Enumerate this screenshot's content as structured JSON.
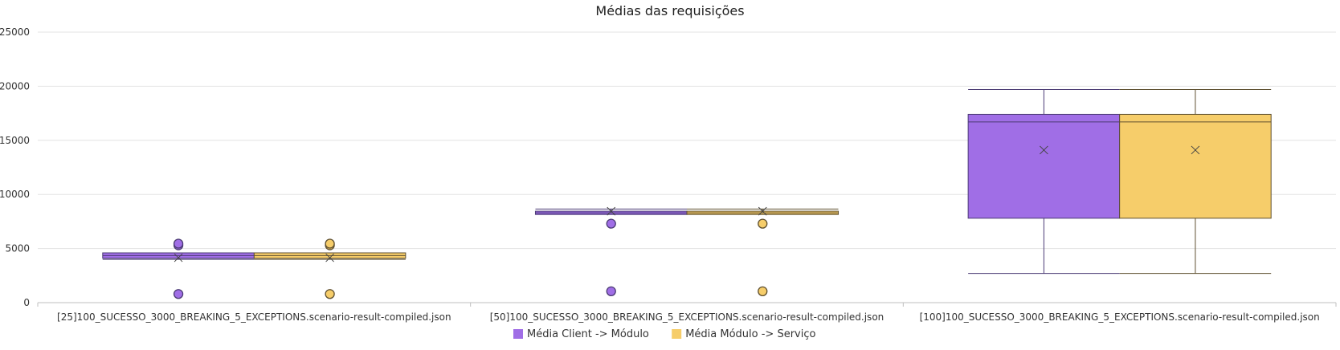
{
  "chart_data": {
    "type": "box",
    "title": "Médias das requisições",
    "y_ticks": [
      0,
      5000,
      10000,
      15000,
      20000,
      25000
    ],
    "ylim": [
      0,
      25000
    ],
    "categories": [
      "[25]100_SUCESSO_3000_BREAKING_5_EXCEPTIONS.scenario-result-compiled.json",
      "[50]100_SUCESSO_3000_BREAKING_5_EXCEPTIONS.scenario-result-compiled.json",
      "[100]100_SUCESSO_3000_BREAKING_5_EXCEPTIONS.scenario-result-compiled.json"
    ],
    "series": [
      {
        "name": "Média Client -> Módulo",
        "color": "#a06ee6",
        "stroke": "#4b3b74",
        "boxes": [
          {
            "whisker_low": 4000,
            "q1": 4100,
            "median": 4350,
            "q3": 4600,
            "whisker_high": 4600,
            "mean": 4150,
            "outliers": [
              800,
              5300,
              5450
            ]
          },
          {
            "whisker_low": 8150,
            "q1": 8150,
            "median": 8300,
            "q3": 8450,
            "whisker_high": 8650,
            "mean": 8450,
            "outliers": [
              1050,
              7300
            ]
          },
          {
            "whisker_low": 2700,
            "q1": 7800,
            "median": 16700,
            "q3": 17400,
            "whisker_high": 19700,
            "mean": 14100,
            "outliers": []
          }
        ]
      },
      {
        "name": "Média Módulo -> Serviço",
        "color": "#f6cd6a",
        "stroke": "#5f5030",
        "boxes": [
          {
            "whisker_low": 4000,
            "q1": 4100,
            "median": 4350,
            "q3": 4600,
            "whisker_high": 4600,
            "mean": 4150,
            "outliers": [
              800,
              5300,
              5450
            ]
          },
          {
            "whisker_low": 8150,
            "q1": 8150,
            "median": 8300,
            "q3": 8450,
            "whisker_high": 8650,
            "mean": 8450,
            "outliers": [
              1050,
              7300
            ]
          },
          {
            "whisker_low": 2700,
            "q1": 7800,
            "median": 16700,
            "q3": 17400,
            "whisker_high": 19700,
            "mean": 14100,
            "outliers": []
          }
        ]
      }
    ],
    "legend_position": "bottom",
    "grid": true
  }
}
